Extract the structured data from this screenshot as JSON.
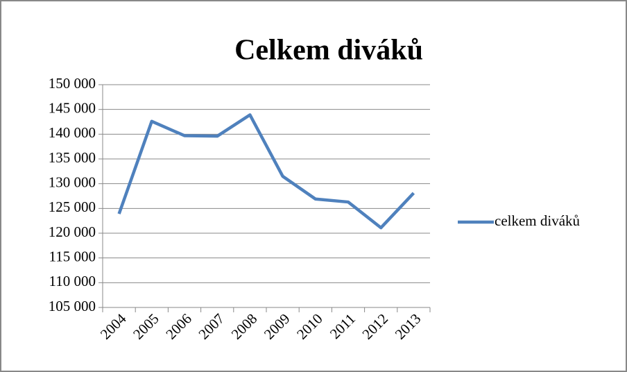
{
  "chart_data": {
    "type": "line",
    "title": "Celkem diváků",
    "categories": [
      "2004",
      "2005",
      "2006",
      "2007",
      "2008",
      "2009",
      "2010",
      "2011",
      "2012",
      "2013"
    ],
    "series": [
      {
        "name": "celkem diváků",
        "color": "#4f81bd",
        "values": [
          123900,
          142600,
          139700,
          139600,
          143900,
          131500,
          126900,
          126300,
          121100,
          128100
        ]
      }
    ],
    "ylim": [
      105000,
      150000
    ],
    "yticks": [
      {
        "value": 105000,
        "label": "105 000"
      },
      {
        "value": 110000,
        "label": "110 000"
      },
      {
        "value": 115000,
        "label": "115 000"
      },
      {
        "value": 120000,
        "label": "120 000"
      },
      {
        "value": 125000,
        "label": "125 000"
      },
      {
        "value": 130000,
        "label": "130 000"
      },
      {
        "value": 135000,
        "label": "135 000"
      },
      {
        "value": 140000,
        "label": "140 000"
      },
      {
        "value": 145000,
        "label": "145 000"
      },
      {
        "value": 150000,
        "label": "150 000"
      }
    ],
    "grid": true,
    "legend": "right"
  }
}
